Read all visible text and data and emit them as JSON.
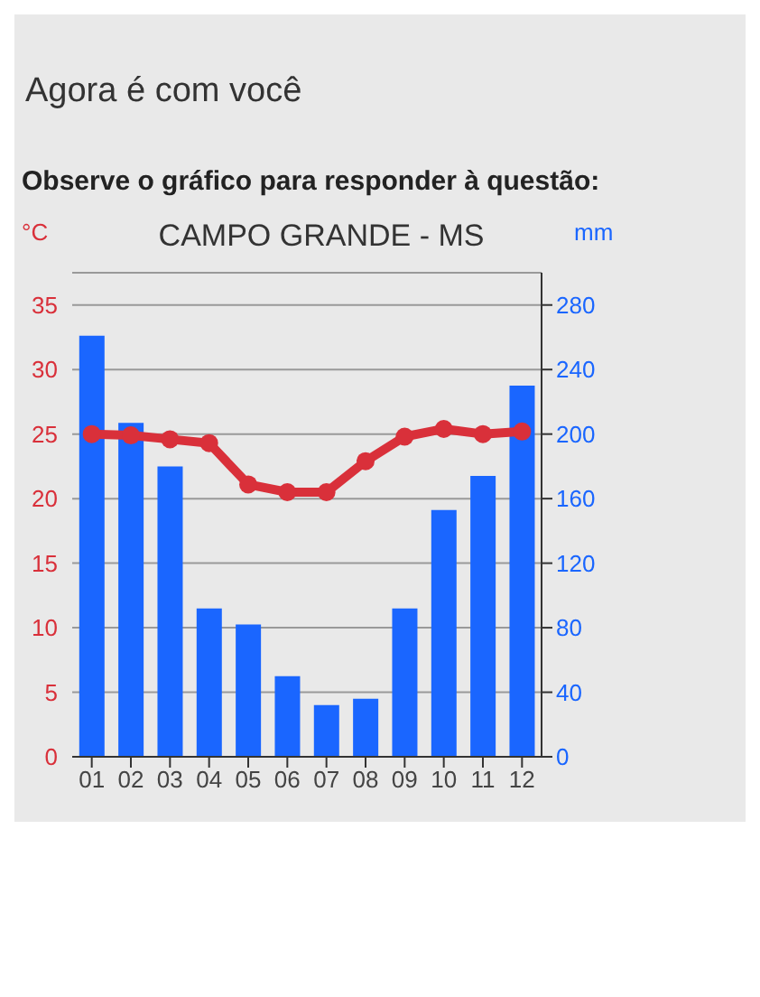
{
  "chart_data": {
    "type": "bar",
    "title": "CAMPO GRANDE - MS",
    "ylabel": "°C",
    "y2label": "mm",
    "annotations": [
      "Agora é com você",
      "Observe o gráfico para responder à questão:"
    ],
    "categories": [
      "01",
      "02",
      "03",
      "04",
      "05",
      "06",
      "07",
      "08",
      "09",
      "10",
      "11",
      "12"
    ],
    "series": [
      {
        "axis": "y2",
        "color": "#1a66ff",
        "values": [
          261,
          207,
          180,
          92,
          82,
          50,
          32,
          36,
          92,
          153,
          174,
          230
        ]
      },
      {
        "type": "line",
        "axis": "y",
        "color": "#d9303a",
        "values": [
          25.0,
          24.9,
          24.6,
          24.3,
          21.1,
          20.5,
          20.5,
          22.9,
          24.8,
          25.4,
          25.0,
          25.2
        ]
      }
    ],
    "ylim": [
      0,
      37.5
    ],
    "yticks": [
      0,
      5,
      10,
      15,
      20,
      25,
      30,
      35
    ],
    "y2lim": [
      0,
      300
    ],
    "y2ticks": [
      0,
      40,
      80,
      120,
      160,
      200,
      240,
      280
    ],
    "grid": "y",
    "marker": "circle",
    "line_style": "solid"
  }
}
